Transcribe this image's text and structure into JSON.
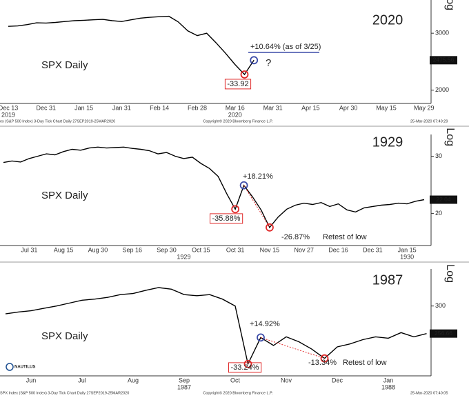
{
  "chart_data": [
    {
      "type": "line",
      "title": "2020",
      "label": "SPX Daily",
      "y_axis_label": "Log",
      "log_scale": true,
      "color": "#000000",
      "categories": [
        "Dec 13",
        null,
        null,
        null,
        "Dec 31",
        null,
        null,
        null,
        "Jan 15",
        null,
        null,
        null,
        "Jan 31",
        null,
        null,
        null,
        "Feb 14",
        null,
        null,
        null,
        "Feb 28",
        null,
        null,
        null,
        "Mar 16",
        null,
        null,
        null,
        "Mar 31",
        null,
        null,
        null,
        "Apr 15",
        null,
        null,
        null,
        "Apr 30",
        null,
        null,
        null,
        "May 15",
        null,
        null,
        null,
        "May 29"
      ],
      "category_years": [
        "2019",
        null,
        null,
        null,
        null,
        null,
        null,
        null,
        null,
        null,
        null,
        null,
        null,
        null,
        null,
        null,
        null,
        null,
        null,
        null,
        null,
        null,
        null,
        null,
        "2020",
        null,
        null,
        null,
        null,
        null,
        null,
        null,
        null,
        null,
        null,
        null,
        null,
        null,
        null,
        null,
        null,
        null,
        null,
        null,
        null
      ],
      "series": [
        {
          "values": [
            3150,
            3160,
            3190,
            3230,
            3225,
            3240,
            3260,
            3280,
            3290,
            3300,
            3310,
            3280,
            3260,
            3300,
            3340,
            3360,
            3375,
            3385,
            3250,
            3050,
            2950,
            3000,
            2800,
            2600,
            2400,
            2237,
            2475.56,
            null,
            null,
            null,
            null,
            null,
            null,
            null,
            null,
            null,
            null,
            null,
            null,
            null,
            null,
            null,
            null,
            null,
            null
          ]
        }
      ],
      "ylim": [
        1820,
        3800
      ],
      "yticks": [
        3000,
        2000
      ],
      "annotations": [
        "+10.64% (as of 3/25)",
        "?",
        "-33.92"
      ],
      "footer": [
        "ex (S&P 500 Index) 3-Day Tick Chart  Daily 27SEP2019-25MAR2020",
        "Copyright© 2020 Bloomberg Finance L.P.",
        "25-Mar-2020 07:49:29"
      ]
    },
    {
      "type": "line",
      "title": "1929",
      "label": "SPX Daily",
      "y_axis_label": "Log",
      "log_scale": true,
      "color": "#000000",
      "categories": [
        null,
        null,
        null,
        "Jul 31",
        null,
        null,
        null,
        "Aug 15",
        null,
        null,
        null,
        "Aug 30",
        null,
        null,
        null,
        "Sep 16",
        null,
        null,
        null,
        "Sep 30",
        null,
        null,
        null,
        "Oct 15",
        null,
        null,
        null,
        "Oct 31",
        null,
        null,
        null,
        "Nov 15",
        null,
        null,
        null,
        "Nov 27",
        null,
        null,
        null,
        "Dec 16",
        null,
        null,
        null,
        "Dec 31",
        null,
        null,
        null,
        "Jan 15",
        null,
        null
      ],
      "category_years": [
        null,
        null,
        null,
        null,
        null,
        null,
        null,
        null,
        null,
        null,
        null,
        null,
        null,
        null,
        null,
        null,
        null,
        null,
        null,
        null,
        null,
        "1929",
        null,
        null,
        null,
        null,
        null,
        null,
        null,
        null,
        null,
        null,
        null,
        null,
        null,
        null,
        null,
        null,
        null,
        null,
        null,
        null,
        null,
        null,
        null,
        null,
        null,
        "1930",
        null,
        null
      ],
      "series": [
        {
          "values": [
            28.7,
            29,
            28.8,
            29.5,
            30,
            30.5,
            30.3,
            31,
            31.5,
            31.3,
            31.8,
            32,
            31.8,
            31.9,
            32,
            31.7,
            31.5,
            31.2,
            30.5,
            30.8,
            30,
            29.5,
            29.8,
            28.5,
            27.5,
            26,
            23,
            20.6,
            24.4,
            22.5,
            20.5,
            18.1,
            19.5,
            20.6,
            21.2,
            21.5,
            21.3,
            21.6,
            21,
            21.4,
            20.5,
            20.2,
            20.8,
            21,
            21.2,
            21.3,
            21.5,
            21.4,
            21.8,
            22.04
          ]
        }
      ],
      "ylim": [
        16,
        35
      ],
      "yticks": [
        30,
        20
      ],
      "annotations": [
        "+18.21%",
        "-35.88%",
        "-26.87%",
        "Retest of low"
      ]
    },
    {
      "type": "line",
      "title": "1987",
      "label": "SPX Daily",
      "y_axis_label": "Log",
      "log_scale": true,
      "color": "#000000",
      "categories": [
        null,
        null,
        "Jun",
        null,
        null,
        null,
        "Jul",
        null,
        null,
        null,
        "Aug",
        null,
        null,
        null,
        "Sep",
        null,
        null,
        null,
        "Oct",
        null,
        null,
        null,
        "Nov",
        null,
        null,
        null,
        "Dec",
        null,
        null,
        null,
        "Jan",
        null,
        null,
        null
      ],
      "category_years": [
        null,
        null,
        null,
        null,
        null,
        null,
        null,
        null,
        null,
        null,
        null,
        null,
        null,
        null,
        "1987",
        null,
        null,
        null,
        null,
        null,
        null,
        null,
        null,
        null,
        null,
        null,
        null,
        null,
        null,
        null,
        "1988",
        null,
        null,
        null
      ],
      "series": [
        {
          "values": [
            287,
            290,
            292,
            296,
            300,
            305,
            310,
            312,
            315,
            320,
            322,
            328,
            333,
            330,
            320,
            318,
            320,
            312,
            300,
            216,
            251,
            240,
            252,
            245,
            235,
            223,
            238,
            242,
            248,
            252,
            250,
            258,
            252,
            256.66
          ]
        }
      ],
      "ylim": [
        202,
        370
      ],
      "yticks": [
        300
      ],
      "annotations": [
        "+14.92%",
        "-33.24%",
        "-13.34%",
        "Retest of low"
      ],
      "footer": [
        "SPX Index (S&P 500 Index) 3-Day Tick Chart  Daily 27SEP2019-25MAR2020",
        "Copyright© 2020 Bloomberg Finance L.P.",
        "25-Mar-2020 07:40:05"
      ]
    }
  ],
  "logo": "NAUTILUS"
}
